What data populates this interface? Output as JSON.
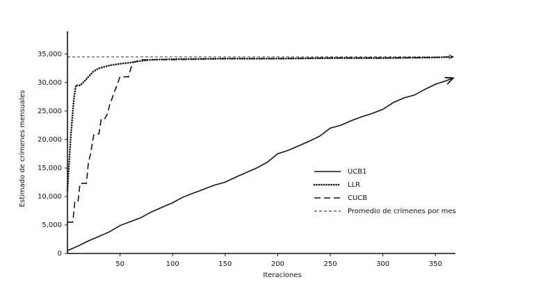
{
  "chart_data": {
    "type": "line",
    "y_label": "Estimado de crímenes mensuales",
    "x_label": "Iteraciones",
    "xlim": [
      0,
      369
    ],
    "ylim": [
      0,
      39000
    ],
    "xticks": [
      50,
      100,
      150,
      200,
      250,
      300,
      350
    ],
    "yticks": [
      0,
      {
        "value": 5000,
        "label": "5,000"
      },
      {
        "value": 10000,
        "label": "10,000"
      },
      {
        "value": 15000,
        "label": "15,000"
      },
      {
        "value": 20000,
        "label": "20,000"
      },
      {
        "value": 25000,
        "label": "25,000"
      },
      {
        "value": 30000,
        "label": "30,000"
      },
      {
        "value": 35000,
        "label": "35,000"
      }
    ],
    "series": [
      {
        "name": "UCB1",
        "color": "#111111",
        "style": "solid",
        "x": [
          0,
          10,
          20,
          30,
          40,
          50,
          60,
          70,
          80,
          90,
          100,
          110,
          120,
          130,
          140,
          150,
          160,
          170,
          180,
          190,
          200,
          210,
          220,
          230,
          240,
          250,
          260,
          270,
          280,
          290,
          300,
          310,
          320,
          330,
          340,
          350,
          360,
          367
        ],
        "values": [
          500,
          1300,
          2200,
          3000,
          3800,
          4900,
          5600,
          6300,
          7300,
          8100,
          8900,
          9900,
          10600,
          11300,
          12000,
          12500,
          13400,
          14200,
          15000,
          16000,
          17500,
          18100,
          18900,
          19700,
          20600,
          22000,
          22500,
          23300,
          24000,
          24600,
          25300,
          26500,
          27300,
          27800,
          28800,
          29700,
          30300,
          30800
        ]
      },
      {
        "name": "LLR",
        "color": "#111111",
        "style": "dotted",
        "x": [
          0,
          3,
          6,
          8,
          12,
          15,
          20,
          25,
          30,
          40,
          50,
          60,
          70,
          80,
          100,
          150,
          200,
          250,
          300,
          350,
          367
        ],
        "values": [
          11000,
          20000,
          27000,
          29500,
          29500,
          30000,
          31000,
          32000,
          32500,
          33000,
          33300,
          33500,
          33800,
          34000,
          34100,
          34200,
          34200,
          34300,
          34300,
          34400,
          34500
        ]
      },
      {
        "name": "CUCB",
        "color": "#111111",
        "style": "dashed",
        "x": [
          0,
          5,
          7,
          10,
          12,
          18,
          20,
          22,
          25,
          27,
          30,
          32,
          35,
          38,
          40,
          45,
          50,
          55,
          58,
          62,
          70,
          80,
          100,
          150,
          200,
          250,
          300,
          350,
          367
        ],
        "values": [
          5500,
          5500,
          9000,
          9000,
          12300,
          12300,
          16000,
          17500,
          20800,
          21000,
          21000,
          23500,
          23500,
          24500,
          26000,
          28500,
          31000,
          31000,
          31000,
          33500,
          34000,
          34000,
          34000,
          34200,
          34200,
          34300,
          34300,
          34400,
          34500
        ]
      },
      {
        "name": "Promedio de crímenes por mes",
        "color": "#111111",
        "style": "thin-dashed",
        "x": [
          0,
          367
        ],
        "values": [
          34500,
          34500
        ]
      }
    ]
  }
}
